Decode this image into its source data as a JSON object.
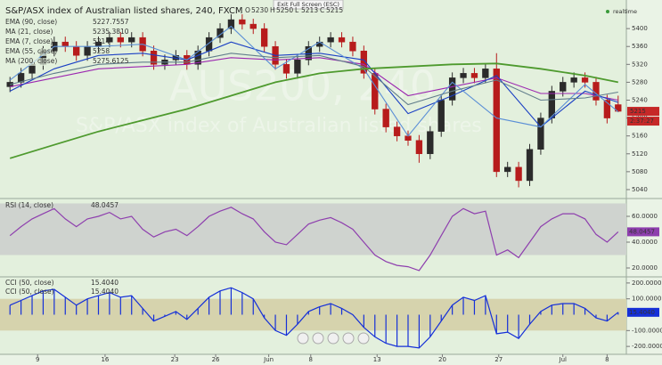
{
  "chart_data": [
    {
      "type": "candlestick",
      "title": "S&P/ASX index of Australian listed shares, 240, FXCM",
      "header_ohlc": [
        {
          "label": "O",
          "value": 5230
        },
        {
          "label": "H",
          "value": 5250
        },
        {
          "label": "L",
          "value": 5213
        },
        {
          "label": "C",
          "value": 5215
        }
      ],
      "exit_fullscreen": "Exit Full Screen (ESC)",
      "realtime": "realtime",
      "watermark": "AUS200, 240",
      "watermark_subtitle": "S&P/ASX index of Australian listed shares",
      "countdown": "2:37:27",
      "up_color": "#2b2b2b",
      "down_color": "#b71c1c",
      "xlim": [
        -0.5,
        55.5
      ],
      "xticks": [
        {
          "value": 2.5,
          "label": "9"
        },
        {
          "value": 8.6,
          "label": "16"
        },
        {
          "value": 14.9,
          "label": "23"
        },
        {
          "value": 18.6,
          "label": "26"
        },
        {
          "value": 23.4,
          "label": "Jun"
        },
        {
          "value": 27.2,
          "label": "8"
        },
        {
          "value": 33.2,
          "label": "13"
        },
        {
          "value": 39.1,
          "label": "20"
        },
        {
          "value": 44.2,
          "label": "27"
        },
        {
          "value": 50.0,
          "label": "Jul"
        },
        {
          "value": 54.0,
          "label": "8"
        }
      ],
      "ylim": [
        5022,
        5454
      ],
      "yticks": [
        5040,
        5080,
        5120,
        5160,
        5200,
        5240,
        5280,
        5320,
        5360,
        5400
      ],
      "open": [
        5270,
        5280,
        5300,
        5320,
        5350,
        5370,
        5360,
        5340,
        5360,
        5370,
        5380,
        5370,
        5380,
        5350,
        5320,
        5330,
        5340,
        5320,
        5350,
        5380,
        5400,
        5420,
        5410,
        5400,
        5360,
        5320,
        5300,
        5330,
        5360,
        5370,
        5380,
        5370,
        5350,
        5300,
        5220,
        5180,
        5160,
        5150,
        5120,
        5170,
        5240,
        5290,
        5300,
        5290,
        5310,
        5080,
        5090,
        5060,
        5130,
        5200,
        5260,
        5280,
        5290,
        5280,
        5240,
        5230
      ],
      "high": [
        5292,
        5312,
        5332,
        5362,
        5382,
        5382,
        5372,
        5372,
        5382,
        5392,
        5392,
        5392,
        5392,
        5362,
        5342,
        5352,
        5352,
        5362,
        5392,
        5412,
        5432,
        5432,
        5422,
        5412,
        5372,
        5332,
        5342,
        5372,
        5382,
        5392,
        5392,
        5382,
        5362,
        5312,
        5232,
        5192,
        5172,
        5162,
        5182,
        5252,
        5302,
        5312,
        5312,
        5322,
        5345,
        5102,
        5102,
        5142,
        5212,
        5272,
        5292,
        5302,
        5302,
        5292,
        5252,
        5250
      ],
      "low": [
        5258,
        5268,
        5288,
        5308,
        5338,
        5348,
        5328,
        5328,
        5348,
        5358,
        5358,
        5358,
        5338,
        5308,
        5308,
        5318,
        5308,
        5308,
        5338,
        5368,
        5388,
        5398,
        5388,
        5348,
        5308,
        5288,
        5288,
        5318,
        5348,
        5358,
        5358,
        5338,
        5288,
        5208,
        5168,
        5148,
        5138,
        5100,
        5108,
        5158,
        5228,
        5278,
        5278,
        5278,
        5068,
        5068,
        5045,
        5048,
        5118,
        5188,
        5248,
        5268,
        5268,
        5228,
        5188,
        5213
      ],
      "close": [
        5280,
        5300,
        5320,
        5350,
        5370,
        5360,
        5340,
        5360,
        5370,
        5380,
        5370,
        5380,
        5350,
        5320,
        5330,
        5340,
        5320,
        5350,
        5380,
        5400,
        5420,
        5410,
        5400,
        5360,
        5320,
        5300,
        5330,
        5360,
        5370,
        5380,
        5370,
        5350,
        5300,
        5220,
        5180,
        5160,
        5150,
        5120,
        5170,
        5240,
        5290,
        5300,
        5290,
        5310,
        5080,
        5090,
        5060,
        5130,
        5200,
        5260,
        5280,
        5290,
        5280,
        5240,
        5200,
        5215
      ],
      "overlays": [
        {
          "name": "EMA (90, close)",
          "last_value": "5227.7557",
          "color": "#9c27b0",
          "x": [
            0,
            4,
            8,
            12,
            16,
            20,
            24,
            28,
            32,
            36,
            40,
            44,
            48,
            52,
            55
          ],
          "values": [
            5270,
            5290,
            5310,
            5315,
            5320,
            5335,
            5330,
            5335,
            5320,
            5250,
            5270,
            5290,
            5255,
            5255,
            5240
          ]
        },
        {
          "name": "MA (21, close)",
          "last_value": "5235.3810",
          "color": "#1a3fc4",
          "x": [
            0,
            4,
            8,
            12,
            16,
            20,
            24,
            28,
            32,
            36,
            40,
            44,
            48,
            52,
            55
          ],
          "values": [
            5260,
            5310,
            5340,
            5345,
            5330,
            5370,
            5340,
            5345,
            5330,
            5210,
            5250,
            5295,
            5180,
            5260,
            5235
          ]
        },
        {
          "name": "EMA (7, close)",
          "last_value": "5214",
          "color": "#5b8fd6",
          "x": [
            0,
            4,
            8,
            12,
            16,
            20,
            24,
            28,
            32,
            36,
            40,
            44,
            48,
            52,
            55
          ],
          "values": [
            5285,
            5360,
            5360,
            5365,
            5330,
            5405,
            5310,
            5370,
            5310,
            5160,
            5280,
            5200,
            5180,
            5275,
            5214
          ]
        },
        {
          "name": "EMA (55, close)",
          "last_value": "5258",
          "color": "#607d8b",
          "x": [
            0,
            4,
            8,
            12,
            16,
            20,
            24,
            28,
            32,
            36,
            40,
            44,
            48,
            52,
            55
          ],
          "values": [
            5275,
            5300,
            5320,
            5325,
            5325,
            5345,
            5335,
            5340,
            5315,
            5230,
            5260,
            5285,
            5240,
            5245,
            5258
          ]
        },
        {
          "name": "MA (200, close)",
          "last_value": "5275.6125",
          "color": "#4e9a2e",
          "x": [
            0,
            4,
            8,
            12,
            16,
            20,
            24,
            28,
            32,
            36,
            40,
            44,
            48,
            52,
            55
          ],
          "values": [
            5110,
            5140,
            5170,
            5195,
            5220,
            5250,
            5280,
            5300,
            5310,
            5315,
            5320,
            5322,
            5310,
            5295,
            5280
          ]
        }
      ]
    },
    {
      "type": "line",
      "name": "RSI (14, close)",
      "last_value": "48.0457",
      "color": "#8e3fae",
      "band": [
        30,
        70
      ],
      "xlim": [
        -0.5,
        55.5
      ],
      "ylim": [
        13.8,
        72.4
      ],
      "yticks": [
        {
          "value": 60,
          "label": "60.0000"
        },
        {
          "value": 40,
          "label": "40.0000"
        },
        {
          "value": 20,
          "label": "20.0000"
        }
      ],
      "values": [
        45,
        52,
        58,
        62,
        66,
        58,
        52,
        58,
        60,
        63,
        58,
        60,
        50,
        44,
        48,
        50,
        45,
        52,
        60,
        64,
        67,
        62,
        58,
        48,
        40,
        38,
        46,
        54,
        57,
        59,
        55,
        50,
        40,
        30,
        25,
        22,
        21,
        18,
        30,
        45,
        60,
        66,
        62,
        64,
        30,
        34,
        28,
        40,
        52,
        58,
        62,
        62,
        58,
        46,
        40,
        48
      ]
    },
    {
      "type": "line",
      "histogram": true,
      "name": "CCI (50, close)",
      "last_value": "15.4040",
      "color": "#1530d8",
      "band": [
        -100,
        100
      ],
      "xlim": [
        -0.5,
        55.5
      ],
      "ylim": [
        -233,
        233
      ],
      "yticks": [
        {
          "value": 200,
          "label": "200.0000"
        },
        {
          "value": 100,
          "label": "100.0000"
        },
        {
          "value": -100,
          "label": "-100.0000"
        },
        {
          "value": -200,
          "label": "-200.0000"
        }
      ],
      "values": [
        60,
        90,
        120,
        150,
        160,
        110,
        60,
        100,
        120,
        140,
        110,
        120,
        40,
        -40,
        -10,
        20,
        -30,
        40,
        110,
        150,
        170,
        140,
        100,
        -20,
        -100,
        -130,
        -60,
        20,
        50,
        70,
        40,
        0,
        -80,
        -140,
        -180,
        -200,
        -200,
        -210,
        -140,
        -40,
        60,
        110,
        90,
        120,
        -120,
        -110,
        -150,
        -60,
        20,
        60,
        70,
        70,
        40,
        -20,
        -40,
        15
      ]
    }
  ]
}
